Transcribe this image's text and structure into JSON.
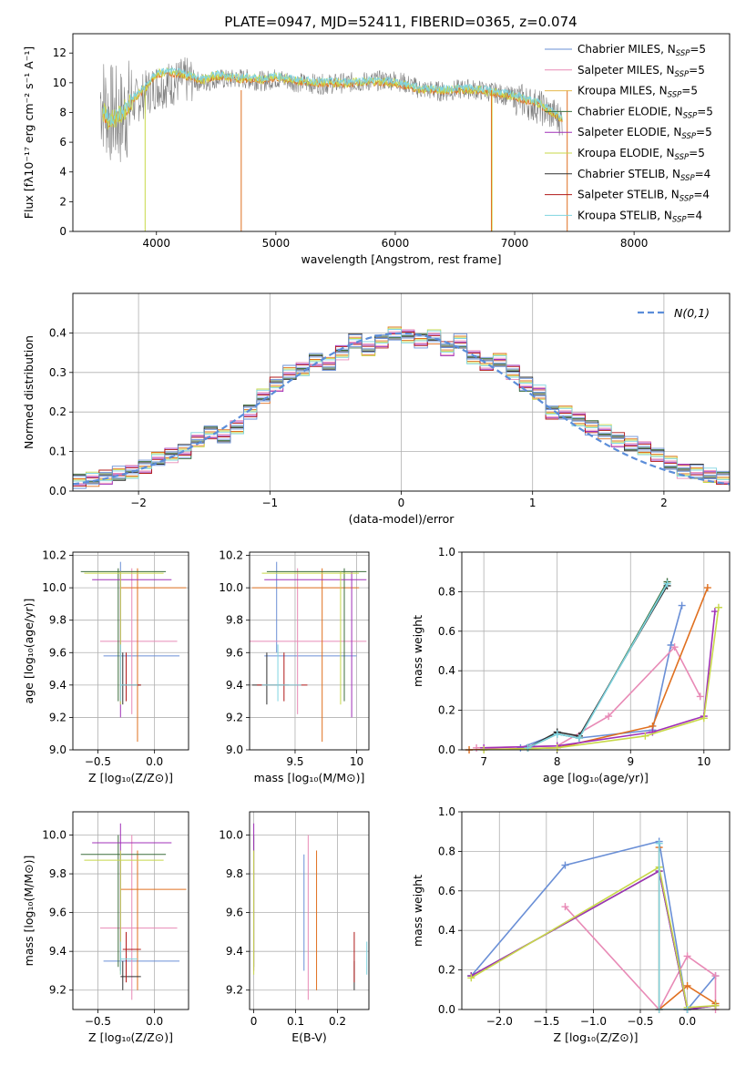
{
  "figure_title": "PLATE=0947, MJD=52411, FIBERID=0365, z=0.074",
  "legend_entries": [
    {
      "label": "Chabrier MILES, N",
      "sub": "SSP",
      "tail": "=5",
      "color": "#6a8fd6"
    },
    {
      "label": "Salpeter MILES, N",
      "sub": "SSP",
      "tail": "=5",
      "color": "#e88ab6"
    },
    {
      "label": "Kroupa MILES, N",
      "sub": "SSP",
      "tail": "=5",
      "color": "#e6b84c"
    },
    {
      "label": "Chabrier ELODIE, N",
      "sub": "SSP",
      "tail": "=5",
      "color": "#3d6e3d"
    },
    {
      "label": "Salpeter ELODIE, N",
      "sub": "SSP",
      "tail": "=5",
      "color": "#a030b8"
    },
    {
      "label": "Kroupa ELODIE, N",
      "sub": "SSP",
      "tail": "=5",
      "color": "#c8d84a"
    },
    {
      "label": "Chabrier STELIB, N",
      "sub": "SSP",
      "tail": "=4",
      "color": "#303030"
    },
    {
      "label": "Salpeter STELIB, N",
      "sub": "SSP",
      "tail": "=4",
      "color": "#b01818"
    },
    {
      "label": "Kroupa STELIB, N",
      "sub": "SSP",
      "tail": "=4",
      "color": "#7fd4e0"
    }
  ],
  "chart_data": [
    {
      "id": "spectrum",
      "type": "line",
      "xlabel": "wavelength [Angstrom, rest frame]",
      "ylabel": "Flux [fλ10⁻¹⁷ erg cm⁻² s⁻¹ A⁻¹]",
      "xlim": [
        3300,
        8800
      ],
      "ylim": [
        0,
        13.3
      ],
      "xticks": [
        4000,
        5000,
        6000,
        7000,
        8000
      ],
      "yticks": [
        0,
        2,
        4,
        6,
        8,
        10,
        12
      ],
      "grid": false,
      "series": [
        {
          "name": "data",
          "color": "#808080",
          "x": [
            3530,
            3600,
            3700,
            3800,
            3900,
            4000,
            4100,
            4200,
            4300,
            4400,
            4500,
            4600,
            4700,
            4800,
            4900,
            5000,
            5200,
            5400,
            5600,
            5800,
            6000,
            6200,
            6400,
            6600,
            6800,
            7000,
            7200,
            7400
          ],
          "y": [
            9.0,
            8.0,
            7.6,
            8.6,
            9.2,
            9.8,
            9.9,
            10.1,
            10.2,
            10.0,
            10.3,
            10.2,
            10.3,
            10.2,
            10.1,
            10.3,
            10.0,
            9.9,
            10.0,
            10.1,
            10.2,
            9.6,
            9.4,
            9.6,
            9.4,
            9.0,
            8.4,
            7.5
          ]
        },
        {
          "name": "model",
          "color": "#7fd4e0",
          "x": [
            3550,
            3600,
            3700,
            3800,
            3900,
            4000,
            4100,
            4200,
            4300,
            4400,
            4500,
            4600,
            4700,
            4800,
            4900,
            5000,
            5200,
            5400,
            5600,
            5800,
            6000,
            6200,
            6400,
            6600,
            6800,
            7000,
            7200,
            7400
          ],
          "y": [
            8.1,
            7.5,
            7.8,
            8.9,
            9.6,
            10.6,
            10.7,
            10.6,
            10.4,
            10.2,
            10.5,
            10.4,
            10.3,
            10.3,
            10.2,
            10.4,
            10.1,
            10.0,
            10.0,
            10.1,
            10.0,
            9.6,
            9.5,
            9.6,
            9.4,
            9.1,
            8.6,
            7.6
          ]
        }
      ]
    },
    {
      "id": "residuals",
      "type": "line",
      "xlabel": "(data-model)/error",
      "ylabel": "Normed distribution",
      "xlim": [
        -2.5,
        2.5
      ],
      "ylim": [
        0,
        0.5
      ],
      "xticks": [
        -2,
        -1,
        0,
        1,
        2
      ],
      "yticks": [
        0.0,
        0.1,
        0.2,
        0.3,
        0.4
      ],
      "grid": true,
      "legend": "N(0,1)",
      "reference": {
        "name": "N(0,1)",
        "color": "#5b8dd9",
        "style": "dashed"
      },
      "hist_x": [
        -2.5,
        -2.4,
        -2.3,
        -2.2,
        -2.1,
        -2.0,
        -1.9,
        -1.8,
        -1.7,
        -1.6,
        -1.5,
        -1.4,
        -1.3,
        -1.2,
        -1.1,
        -1.0,
        -0.9,
        -0.8,
        -0.7,
        -0.6,
        -0.5,
        -0.4,
        -0.3,
        -0.2,
        -0.1,
        0.0,
        0.1,
        0.2,
        0.3,
        0.4,
        0.5,
        0.6,
        0.7,
        0.8,
        0.9,
        1.0,
        1.1,
        1.2,
        1.3,
        1.4,
        1.5,
        1.6,
        1.7,
        1.8,
        1.9,
        2.0,
        2.1,
        2.2,
        2.3,
        2.4
      ],
      "hist_y": [
        0.025,
        0.03,
        0.035,
        0.045,
        0.05,
        0.06,
        0.08,
        0.09,
        0.1,
        0.13,
        0.15,
        0.14,
        0.16,
        0.2,
        0.24,
        0.27,
        0.3,
        0.31,
        0.33,
        0.32,
        0.35,
        0.38,
        0.36,
        0.38,
        0.4,
        0.39,
        0.38,
        0.39,
        0.36,
        0.38,
        0.34,
        0.32,
        0.33,
        0.3,
        0.27,
        0.25,
        0.2,
        0.2,
        0.18,
        0.16,
        0.15,
        0.13,
        0.12,
        0.11,
        0.09,
        0.07,
        0.05,
        0.05,
        0.04,
        0.035
      ]
    },
    {
      "id": "age_vs_Z",
      "type": "scatter",
      "xlabel": "Z [log₁₀(Z/Z⊙)]",
      "ylabel": "age  [log₁₀(age/yr)]",
      "xlim": [
        -0.72,
        0.3
      ],
      "ylim": [
        9.0,
        10.22
      ],
      "xticks": [
        -0.5,
        0.0
      ],
      "yticks": [
        9.0,
        9.2,
        9.4,
        9.6,
        9.8,
        10.0,
        10.2
      ],
      "grid": true
    },
    {
      "id": "age_vs_mass",
      "type": "scatter",
      "xlabel": "mass [log₁₀(M/M⊙)]",
      "ylabel": "",
      "xlim": [
        9.13,
        10.1
      ],
      "ylim": [
        9.0,
        10.22
      ],
      "xticks": [
        9.5,
        10.0
      ],
      "yticks": [
        9.0,
        9.2,
        9.4,
        9.6,
        9.8,
        10.0,
        10.2
      ],
      "grid": true
    },
    {
      "id": "mass_weight_vs_age",
      "type": "line",
      "xlabel": "age  [log₁₀(age/yr)]",
      "ylabel": "mass weight",
      "xlim": [
        6.7,
        10.35
      ],
      "ylim": [
        0,
        1.0
      ],
      "xticks": [
        7,
        8,
        9,
        10
      ],
      "yticks": [
        0.0,
        0.2,
        0.4,
        0.6,
        0.8,
        1.0
      ],
      "grid": true,
      "series": [
        {
          "name": "Chabrier MILES",
          "color": "#6a8fd6",
          "x": [
            7.5,
            8.0,
            8.3,
            9.3,
            9.55,
            9.7
          ],
          "y": [
            0.01,
            0.08,
            0.06,
            0.1,
            0.53,
            0.73
          ]
        },
        {
          "name": "Salpeter MILES",
          "color": "#e88ab6",
          "x": [
            6.9,
            8.0,
            8.7,
            9.6,
            9.95
          ],
          "y": [
            0.01,
            0.02,
            0.17,
            0.52,
            0.27
          ]
        },
        {
          "name": "Kroupa MILES",
          "color": "#e07020",
          "x": [
            6.8,
            8.0,
            9.3,
            10.05
          ],
          "y": [
            0.0,
            0.01,
            0.12,
            0.82
          ]
        },
        {
          "name": "Chabrier ELODIE",
          "color": "#3d6e3d",
          "x": [
            7.6,
            8.0,
            8.3,
            9.5
          ],
          "y": [
            0.01,
            0.08,
            0.06,
            0.85
          ]
        },
        {
          "name": "Salpeter ELODIE",
          "color": "#a030b8",
          "x": [
            7.0,
            8.0,
            9.3,
            10.0,
            10.15
          ],
          "y": [
            0.01,
            0.02,
            0.09,
            0.17,
            0.7
          ]
        },
        {
          "name": "Kroupa ELODIE",
          "color": "#c8d84a",
          "x": [
            7.0,
            8.0,
            9.2,
            10.0,
            10.2
          ],
          "y": [
            0.0,
            0.01,
            0.07,
            0.16,
            0.72
          ]
        },
        {
          "name": "Chabrier STELIB",
          "color": "#303030",
          "x": [
            7.6,
            8.0,
            8.3,
            9.5
          ],
          "y": [
            0.01,
            0.09,
            0.07,
            0.83
          ]
        },
        {
          "name": "Kroupa STELIB",
          "color": "#7fd4e0",
          "x": [
            7.6,
            8.0,
            8.3,
            9.5
          ],
          "y": [
            0.01,
            0.08,
            0.06,
            0.84
          ]
        }
      ]
    },
    {
      "id": "mass_vs_Z",
      "type": "scatter",
      "xlabel": "Z [log₁₀(Z/Z⊙)]",
      "ylabel": "mass [log₁₀(M/M⊙)]",
      "xlim": [
        -0.72,
        0.3
      ],
      "ylim": [
        9.1,
        10.12
      ],
      "xticks": [
        -0.5,
        0.0
      ],
      "yticks": [
        9.2,
        9.4,
        9.6,
        9.8,
        10.0
      ],
      "grid": true
    },
    {
      "id": "mass_vs_EBV",
      "type": "scatter",
      "xlabel": "E(B-V)",
      "ylabel": "",
      "xlim": [
        -0.01,
        0.275
      ],
      "ylim": [
        9.1,
        10.12
      ],
      "xticks": [
        0.0,
        0.1,
        0.2
      ],
      "yticks": [
        9.2,
        9.4,
        9.6,
        9.8,
        10.0
      ],
      "grid": true
    },
    {
      "id": "mass_weight_vs_Z",
      "type": "line",
      "xlabel": "Z [log₁₀(Z/Z⊙)]",
      "ylabel": "mass weight",
      "xlim": [
        -2.4,
        0.45
      ],
      "ylim": [
        0,
        1.0
      ],
      "xticks": [
        -2.0,
        -1.5,
        -1.0,
        -0.5,
        0.0
      ],
      "yticks": [
        0.0,
        0.2,
        0.4,
        0.6,
        0.8,
        1.0
      ],
      "grid": true,
      "series": [
        {
          "name": "Chabrier MILES",
          "color": "#6a8fd6",
          "x": [
            -2.3,
            -1.3,
            -0.3,
            0.0,
            0.3
          ],
          "y": [
            0.17,
            0.73,
            0.85,
            0.0,
            0.17
          ]
        },
        {
          "name": "Salpeter MILES",
          "color": "#e88ab6",
          "x": [
            -1.3,
            -0.3,
            0.0,
            0.3,
            0.3
          ],
          "y": [
            0.52,
            0.0,
            0.27,
            0.17,
            0.0
          ]
        },
        {
          "name": "Kroupa MILES",
          "color": "#e07020",
          "x": [
            -0.3,
            -0.3,
            0.0,
            0.3
          ],
          "y": [
            0.82,
            0.0,
            0.12,
            0.03
          ]
        },
        {
          "name": "Chabrier ELODIE",
          "color": "#3d6e3d",
          "x": [
            -2.3,
            -0.3,
            0.0,
            0.3
          ],
          "y": [
            0.17,
            0.7,
            0.0,
            0.02
          ]
        },
        {
          "name": "Salpeter ELODIE",
          "color": "#a030b8",
          "x": [
            -2.3,
            -0.3,
            0.0,
            0.3
          ],
          "y": [
            0.17,
            0.7,
            0.0,
            0.02
          ]
        },
        {
          "name": "Kroupa ELODIE",
          "color": "#c8d84a",
          "x": [
            -2.3,
            -0.3,
            0.0,
            0.3
          ],
          "y": [
            0.16,
            0.72,
            0.01,
            0.02
          ]
        },
        {
          "name": "Kroupa STELIB",
          "color": "#7fd4e0",
          "x": [
            -0.3,
            -0.3,
            0.0
          ],
          "y": [
            0.84,
            0.0,
            0.0
          ]
        }
      ]
    }
  ],
  "errorbars": {
    "colors": [
      "#6a8fd6",
      "#e88ab6",
      "#e07020",
      "#3d6e3d",
      "#a030b8",
      "#c8d84a",
      "#303030",
      "#b01818",
      "#7fd4e0"
    ],
    "Z": [
      [
        -0.45,
        0.22,
        -0.3
      ],
      [
        -0.48,
        0.2,
        -0.2
      ],
      [
        -0.3,
        0.28,
        -0.15
      ],
      [
        -0.65,
        0.1,
        -0.32
      ],
      [
        -0.55,
        0.15,
        -0.3
      ],
      [
        -0.62,
        0.08,
        -0.3
      ],
      [
        -0.3,
        -0.12,
        -0.28
      ],
      [
        -0.28,
        -0.12,
        -0.25
      ],
      [
        -0.3,
        -0.15,
        -0.3
      ]
    ],
    "age": [
      [
        9.58,
        9.6,
        10.16
      ],
      [
        9.67,
        9.22,
        10.12
      ],
      [
        10.0,
        9.05,
        10.12
      ],
      [
        10.1,
        9.3,
        10.12
      ],
      [
        10.05,
        9.2,
        10.1
      ],
      [
        10.09,
        9.28,
        10.1
      ],
      [
        9.4,
        9.28,
        9.6
      ],
      [
        9.4,
        9.3,
        9.6
      ],
      [
        9.4,
        9.3,
        9.65
      ]
    ],
    "mass": [
      [
        9.35,
        9.3,
        9.9
      ],
      [
        9.52,
        9.15,
        10.0
      ],
      [
        9.72,
        9.2,
        9.92
      ],
      [
        9.9,
        9.32,
        10.0
      ],
      [
        9.96,
        9.3,
        10.06
      ],
      [
        9.87,
        9.28,
        9.92
      ],
      [
        9.27,
        9.2,
        9.35
      ],
      [
        9.41,
        9.24,
        9.5
      ],
      [
        9.36,
        9.28,
        9.45
      ]
    ],
    "ebv": [
      0.12,
      0.13,
      0.15,
      0.0,
      0.0,
      0.0,
      0.24,
      0.24,
      0.27
    ]
  }
}
